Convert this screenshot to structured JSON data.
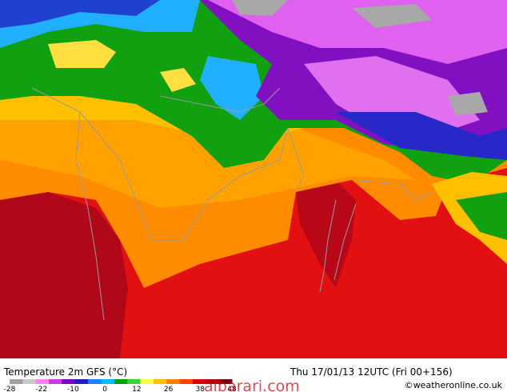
{
  "footer": {
    "title": "Temperature 2m GFS (°C)",
    "datetime": "Thu 17/01/13 12UTC  (Fri 00+156)",
    "credit": "©weatheronline.co.uk",
    "watermark": "albarari.com"
  },
  "legend": {
    "ticks": [
      "-28",
      "-22",
      "-10",
      "0",
      "12",
      "26",
      "38",
      "48"
    ],
    "colors": [
      "#a0a0a0",
      "#c8c8c8",
      "#ff80ff",
      "#c040e0",
      "#8000c0",
      "#2020c0",
      "#2080ff",
      "#00c0ff",
      "#00a000",
      "#40d040",
      "#ffff40",
      "#ffc000",
      "#ff8000",
      "#ff4000",
      "#e00000",
      "#b00010",
      "#700010"
    ]
  }
}
